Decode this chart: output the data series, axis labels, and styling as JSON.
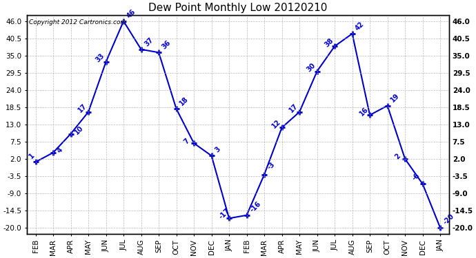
{
  "title": "Dew Point Monthly Low 20120210",
  "copyright": "Copyright 2012 Cartronics.com",
  "x_labels": [
    "FEB",
    "MAR",
    "APR",
    "MAY",
    "JUN",
    "JUL",
    "AUG",
    "SEP",
    "OCT",
    "NOV",
    "DEC",
    "JAN",
    "FEB",
    "MAR",
    "APR",
    "MAY",
    "JUN",
    "JUL",
    "AUG",
    "SEP",
    "OCT",
    "NOV",
    "DEC",
    "JAN"
  ],
  "y_values": [
    1,
    4,
    10,
    17,
    33,
    46,
    37,
    36,
    18,
    7,
    3,
    -17,
    -16,
    -3,
    12,
    17,
    30,
    38,
    42,
    16,
    19,
    2,
    -6,
    -20
  ],
  "y_ticks": [
    -20.0,
    -14.5,
    -9.0,
    -3.5,
    2.0,
    7.5,
    13.0,
    18.5,
    24.0,
    29.5,
    35.0,
    40.5,
    46.0
  ],
  "line_color": "#0000cc",
  "background_color": "#ffffff",
  "grid_color": "#aaaaaa",
  "ylim_min": -22,
  "ylim_max": 48,
  "title_fontsize": 11,
  "annotation_fontsize": 7,
  "tick_fontsize": 7.5,
  "copyright_fontsize": 6.5
}
